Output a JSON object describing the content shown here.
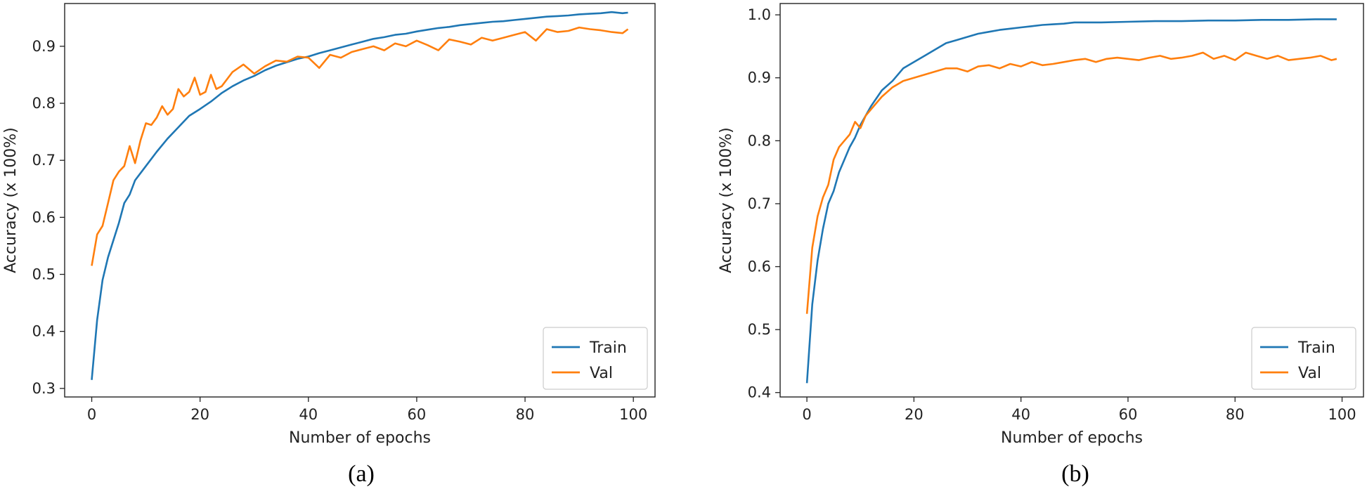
{
  "colors": {
    "train": "#1f77b4",
    "val": "#ff7f0e",
    "axis": "#222222"
  },
  "chart_data": [
    {
      "type": "line",
      "caption": "(a)",
      "xlabel": "Number of epochs",
      "ylabel": "Accuracy (x 100%)",
      "xlim": [
        -5,
        104
      ],
      "ylim": [
        0.285,
        0.975
      ],
      "xticks": [
        0,
        20,
        40,
        60,
        80,
        100
      ],
      "yticks": [
        0.3,
        0.4,
        0.5,
        0.6,
        0.7,
        0.8,
        0.9
      ],
      "ytick_labels": [
        "0.3",
        "0.4",
        "0.5",
        "0.6",
        "0.7",
        "0.8",
        "0.9"
      ],
      "legend": {
        "placement": "lower-right",
        "entries": [
          "Train",
          "Val"
        ]
      },
      "series": [
        {
          "name": "Train",
          "x": [
            0,
            1,
            2,
            3,
            4,
            5,
            6,
            7,
            8,
            10,
            12,
            14,
            16,
            18,
            20,
            22,
            24,
            26,
            28,
            30,
            32,
            34,
            36,
            38,
            40,
            42,
            44,
            46,
            48,
            50,
            52,
            54,
            56,
            58,
            60,
            62,
            64,
            66,
            68,
            70,
            72,
            74,
            76,
            78,
            80,
            82,
            84,
            86,
            88,
            90,
            92,
            94,
            96,
            98,
            99
          ],
          "values": [
            0.315,
            0.42,
            0.49,
            0.53,
            0.56,
            0.59,
            0.625,
            0.64,
            0.665,
            0.69,
            0.715,
            0.738,
            0.758,
            0.778,
            0.79,
            0.803,
            0.818,
            0.83,
            0.84,
            0.848,
            0.858,
            0.866,
            0.872,
            0.878,
            0.882,
            0.888,
            0.893,
            0.898,
            0.903,
            0.908,
            0.913,
            0.916,
            0.92,
            0.922,
            0.926,
            0.929,
            0.932,
            0.934,
            0.937,
            0.939,
            0.941,
            0.943,
            0.944,
            0.946,
            0.948,
            0.95,
            0.952,
            0.953,
            0.954,
            0.956,
            0.957,
            0.958,
            0.96,
            0.958,
            0.959
          ]
        },
        {
          "name": "Val",
          "x": [
            0,
            1,
            2,
            3,
            4,
            5,
            6,
            7,
            8,
            9,
            10,
            11,
            12,
            13,
            14,
            15,
            16,
            17,
            18,
            19,
            20,
            21,
            22,
            23,
            24,
            26,
            28,
            30,
            32,
            34,
            36,
            38,
            40,
            42,
            44,
            46,
            48,
            50,
            52,
            54,
            56,
            58,
            60,
            62,
            64,
            66,
            68,
            70,
            72,
            74,
            76,
            78,
            80,
            82,
            84,
            86,
            88,
            90,
            92,
            94,
            96,
            98,
            99
          ],
          "values": [
            0.515,
            0.57,
            0.585,
            0.625,
            0.665,
            0.68,
            0.69,
            0.725,
            0.695,
            0.735,
            0.765,
            0.762,
            0.775,
            0.795,
            0.78,
            0.79,
            0.825,
            0.812,
            0.82,
            0.845,
            0.815,
            0.82,
            0.85,
            0.825,
            0.83,
            0.855,
            0.868,
            0.852,
            0.865,
            0.875,
            0.873,
            0.882,
            0.88,
            0.862,
            0.885,
            0.88,
            0.89,
            0.895,
            0.9,
            0.893,
            0.905,
            0.9,
            0.91,
            0.902,
            0.893,
            0.912,
            0.908,
            0.903,
            0.915,
            0.91,
            0.915,
            0.92,
            0.925,
            0.91,
            0.93,
            0.925,
            0.927,
            0.933,
            0.93,
            0.928,
            0.925,
            0.923,
            0.93
          ]
        }
      ]
    },
    {
      "type": "line",
      "caption": "(b)",
      "xlabel": "Number of epochs",
      "ylabel": "Accuracy (x 100%)",
      "xlim": [
        -5,
        104
      ],
      "ylim": [
        0.393,
        1.018
      ],
      "xticks": [
        0,
        20,
        40,
        60,
        80,
        100
      ],
      "yticks": [
        0.4,
        0.5,
        0.6,
        0.7,
        0.8,
        0.9,
        1.0
      ],
      "ytick_labels": [
        "0.4",
        "0.5",
        "0.6",
        "0.7",
        "0.8",
        "0.9",
        "1.0"
      ],
      "legend": {
        "placement": "lower-right",
        "entries": [
          "Train",
          "Val"
        ]
      },
      "series": [
        {
          "name": "Train",
          "x": [
            0,
            1,
            2,
            3,
            4,
            5,
            6,
            7,
            8,
            9,
            10,
            12,
            14,
            16,
            18,
            20,
            22,
            24,
            26,
            28,
            30,
            32,
            34,
            36,
            38,
            40,
            42,
            44,
            46,
            48,
            50,
            55,
            60,
            65,
            70,
            75,
            80,
            85,
            90,
            95,
            99
          ],
          "values": [
            0.415,
            0.54,
            0.61,
            0.66,
            0.7,
            0.72,
            0.75,
            0.77,
            0.79,
            0.805,
            0.825,
            0.855,
            0.88,
            0.895,
            0.915,
            0.925,
            0.935,
            0.945,
            0.955,
            0.96,
            0.965,
            0.97,
            0.973,
            0.976,
            0.978,
            0.98,
            0.982,
            0.984,
            0.985,
            0.986,
            0.988,
            0.988,
            0.989,
            0.99,
            0.99,
            0.991,
            0.991,
            0.992,
            0.992,
            0.993,
            0.993
          ]
        },
        {
          "name": "Val",
          "x": [
            0,
            1,
            2,
            3,
            4,
            5,
            6,
            7,
            8,
            9,
            10,
            11,
            12,
            14,
            16,
            18,
            20,
            22,
            24,
            26,
            28,
            30,
            32,
            34,
            36,
            38,
            40,
            42,
            44,
            46,
            48,
            50,
            52,
            54,
            56,
            58,
            60,
            62,
            64,
            66,
            68,
            70,
            72,
            74,
            76,
            78,
            80,
            82,
            84,
            86,
            88,
            90,
            92,
            94,
            96,
            98,
            99
          ],
          "values": [
            0.525,
            0.63,
            0.68,
            0.71,
            0.73,
            0.77,
            0.79,
            0.8,
            0.81,
            0.83,
            0.82,
            0.84,
            0.85,
            0.87,
            0.885,
            0.895,
            0.9,
            0.905,
            0.91,
            0.915,
            0.915,
            0.91,
            0.918,
            0.92,
            0.915,
            0.922,
            0.918,
            0.925,
            0.92,
            0.922,
            0.925,
            0.928,
            0.93,
            0.925,
            0.93,
            0.932,
            0.93,
            0.928,
            0.932,
            0.935,
            0.93,
            0.932,
            0.935,
            0.94,
            0.93,
            0.935,
            0.928,
            0.94,
            0.935,
            0.93,
            0.935,
            0.928,
            0.93,
            0.932,
            0.935,
            0.928,
            0.93
          ]
        }
      ]
    }
  ]
}
